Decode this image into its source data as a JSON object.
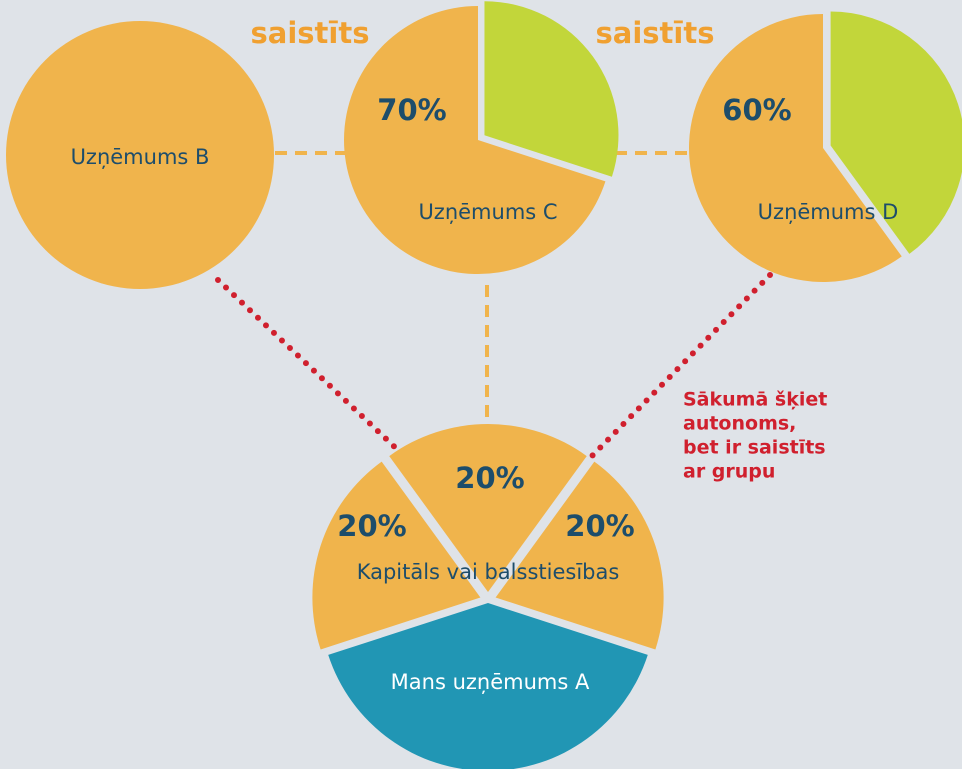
{
  "labels": {
    "linked": [
      "saistīts",
      "saistīts"
    ]
  },
  "companies": {
    "b": "Uzņēmums B",
    "c": "Uzņēmums C",
    "d": "Uzņēmums D",
    "a": "Mans uzņēmums A"
  },
  "shares": {
    "c": "70%",
    "d": "60%",
    "a_top": "20%",
    "a_left": "20%",
    "a_right": "20%"
  },
  "center_label": "Kapitāls vai balsstiesības",
  "note": [
    "Sākumā šķiet",
    "autonoms,",
    "bet ir saistīts",
    "ar grupu"
  ]
}
